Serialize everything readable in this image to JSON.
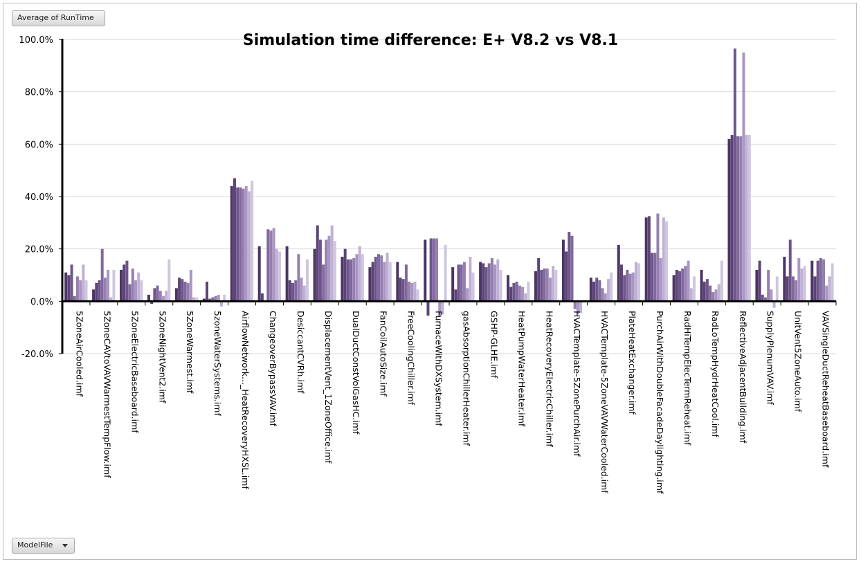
{
  "buttons": {
    "value_field": "Average of RunTime",
    "axis_field": "ModelFile"
  },
  "chart_data": {
    "type": "bar",
    "title": "Simulation time difference: E+ V8.2 vs V8.1",
    "xlabel": "",
    "ylabel": "",
    "ylim": [
      -0.2,
      1.0
    ],
    "yticks": [
      -0.2,
      0.0,
      0.2,
      0.4,
      0.6,
      0.8,
      1.0
    ],
    "ytick_labels": [
      "-20.0%",
      "0.0%",
      "20.0%",
      "40.0%",
      "60.0%",
      "80.0%",
      "100.0%"
    ],
    "grid": true,
    "legend": "none",
    "colors": [
      "#4a3563",
      "#5c4378",
      "#6e558b",
      "#80699d",
      "#957eb0",
      "#aa96c3",
      "#bfb0d5",
      "#d0c6e0"
    ],
    "categories": [
      "5ZoneAirCooled.imf",
      "5ZoneCAVtoVAVWarmestTempFlow.imf",
      "5ZoneElectricBaseboard.imf",
      "5ZoneNightVent2.imf",
      "5ZoneWarmest.imf",
      "5zoneWaterSystems.imf",
      "AirflowNetwork..._HeatRecoveryHXSL.imf",
      "ChangeoverBypassVAV.imf",
      "DesiccantCVRh.imf",
      "DisplacementVent_1ZoneOffice.imf",
      "DualDuctConstVolGasHC.imf",
      "FanCoilAutoSize.imf",
      "FreeCoolingChiller.imf",
      "FurnaceWithDXSystem.imf",
      "gasAbsorptionChillerHeater.imf",
      "GSHP-GLHE.imf",
      "HeatPumpWaterHeater.imf",
      "HeatRecoveryElectricChiller.imf",
      "HVACTemplate-5ZonePurchAir.imf",
      "HVACTemplate-5ZoneVAVWaterCooled.imf",
      "PlateHeatExchanger.imf",
      "PurchAirWithDoubleFacadeDaylighting.imf",
      "RadHiTempElecTermReheat.imf",
      "RadLoTempHydrHeatCool.imf",
      "ReflectiveAdjacentBuilding.imf",
      "SupplyPlenumVAV.imf",
      "UnitVent5ZoneAuto.imf",
      "VAVSingleDuctReheatBaseboard.imf"
    ],
    "values": [
      [
        0.11,
        0.1,
        0.14,
        0.02,
        0.095,
        0.08,
        0.14,
        0.08
      ],
      [
        0.045,
        0.07,
        0.08,
        0.2,
        0.09,
        0.12,
        0.015,
        0.12
      ],
      [
        0.12,
        0.14,
        0.155,
        0.065,
        0.125,
        0.08,
        0.11,
        0.08
      ],
      [
        0.025,
        -0.01,
        0.05,
        0.06,
        0.04,
        0.02,
        0.04,
        0.16
      ],
      [
        0.05,
        0.09,
        0.085,
        0.075,
        0.07,
        0.12,
        0.015,
        0.015
      ],
      [
        0.01,
        0.075,
        0.01,
        0.015,
        0.02,
        0.025,
        -0.02,
        0.025
      ],
      [
        0.44,
        0.47,
        0.435,
        0.435,
        0.43,
        0.44,
        0.42,
        0.46
      ],
      [
        0.21,
        0.03,
        0.0,
        0.275,
        0.27,
        0.28,
        0.2,
        0.19
      ],
      [
        0.21,
        0.08,
        0.07,
        0.08,
        0.18,
        0.09,
        0.06,
        0.16
      ],
      [
        0.2,
        0.29,
        0.235,
        0.14,
        0.235,
        0.25,
        0.29,
        0.23
      ],
      [
        0.17,
        0.2,
        0.16,
        0.16,
        0.165,
        0.18,
        0.21,
        0.18
      ],
      [
        0.13,
        0.15,
        0.17,
        0.18,
        0.175,
        0.15,
        0.185,
        0.15
      ],
      [
        0.15,
        0.09,
        0.085,
        0.14,
        0.075,
        0.07,
        0.075,
        0.045
      ],
      [
        0.235,
        -0.055,
        0.24,
        0.24,
        0.24,
        -0.06,
        -0.05,
        0.215
      ],
      [
        0.13,
        0.045,
        0.14,
        0.14,
        0.15,
        0.05,
        0.17,
        0.11
      ],
      [
        0.15,
        0.145,
        0.13,
        0.145,
        0.165,
        0.14,
        0.16,
        0.12
      ],
      [
        0.1,
        0.055,
        0.07,
        0.075,
        0.06,
        0.055,
        0.03,
        0.075
      ],
      [
        0.115,
        0.165,
        0.12,
        0.125,
        0.125,
        0.09,
        0.135,
        0.12
      ],
      [
        0.235,
        0.19,
        0.265,
        0.25,
        -0.03,
        -0.05,
        -0.045,
        0.0
      ],
      [
        0.09,
        0.075,
        0.09,
        0.08,
        0.05,
        0.03,
        0.085,
        0.11
      ],
      [
        0.215,
        0.14,
        0.1,
        0.12,
        0.105,
        0.11,
        0.15,
        0.145
      ],
      [
        0.32,
        0.325,
        0.185,
        0.185,
        0.335,
        0.165,
        0.32,
        0.305
      ],
      [
        0.1,
        0.12,
        0.115,
        0.125,
        0.135,
        0.155,
        0.05,
        0.095
      ],
      [
        0.12,
        0.075,
        0.085,
        0.06,
        0.035,
        0.045,
        0.065,
        0.155
      ],
      [
        0.62,
        0.635,
        0.965,
        0.63,
        0.63,
        0.95,
        0.635,
        0.635
      ],
      [
        0.12,
        0.155,
        0.025,
        0.015,
        0.12,
        0.045,
        -0.025,
        0.095
      ],
      [
        0.17,
        0.095,
        0.235,
        0.095,
        0.08,
        0.165,
        0.125,
        0.135
      ],
      [
        0.155,
        0.095,
        0.155,
        0.165,
        0.16,
        0.06,
        0.095,
        0.145
      ]
    ]
  }
}
